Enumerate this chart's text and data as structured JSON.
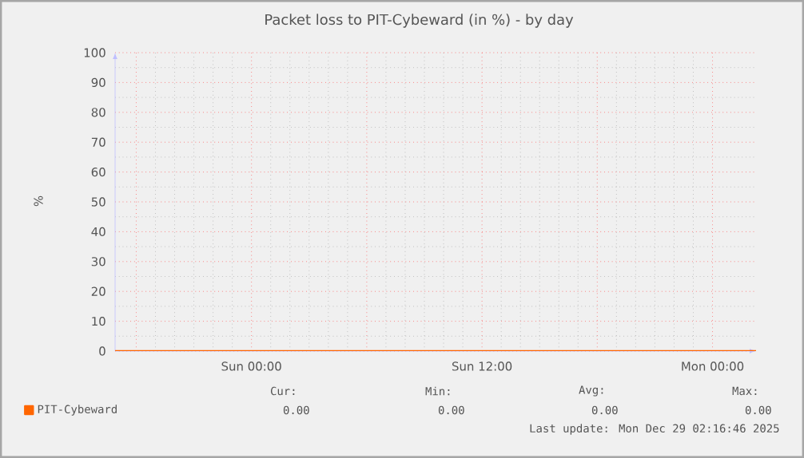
{
  "chart_data": {
    "type": "line",
    "title": "Packet loss to PIT-Cybeward (in %) - by day",
    "ylabel": "%",
    "x": [
      "2025-12-27T16:54",
      "2025-12-29T02:16"
    ],
    "series": [
      {
        "name": "PIT-Cybeward",
        "color": "#ff6600",
        "values": [
          0,
          0
        ]
      }
    ],
    "xlim": [
      "2025-12-27T16:54",
      "2025-12-29T02:16"
    ],
    "xticks": [
      {
        "value": "2025-12-27T18:00",
        "label": null
      },
      {
        "value": "2025-12-28T00:00",
        "label": "Sun 00:00"
      },
      {
        "value": "2025-12-28T06:00",
        "label": null
      },
      {
        "value": "2025-12-28T12:00",
        "label": "Sun 12:00"
      },
      {
        "value": "2025-12-28T18:00",
        "label": null
      },
      {
        "value": "2025-12-29T00:00",
        "label": "Mon 00:00"
      }
    ],
    "ylim": [
      0,
      100
    ],
    "yticks": [
      0,
      10,
      20,
      30,
      40,
      50,
      60,
      70,
      80,
      90,
      100
    ],
    "grid": true,
    "legend": "bottom left",
    "annotations": [
      "Cur:",
      "Min:",
      "Avg:",
      "Max:",
      "0.00",
      "0.00",
      "0.00",
      "0.00",
      "Last update: Mon Dec 29 02:16:46 2025"
    ]
  }
}
